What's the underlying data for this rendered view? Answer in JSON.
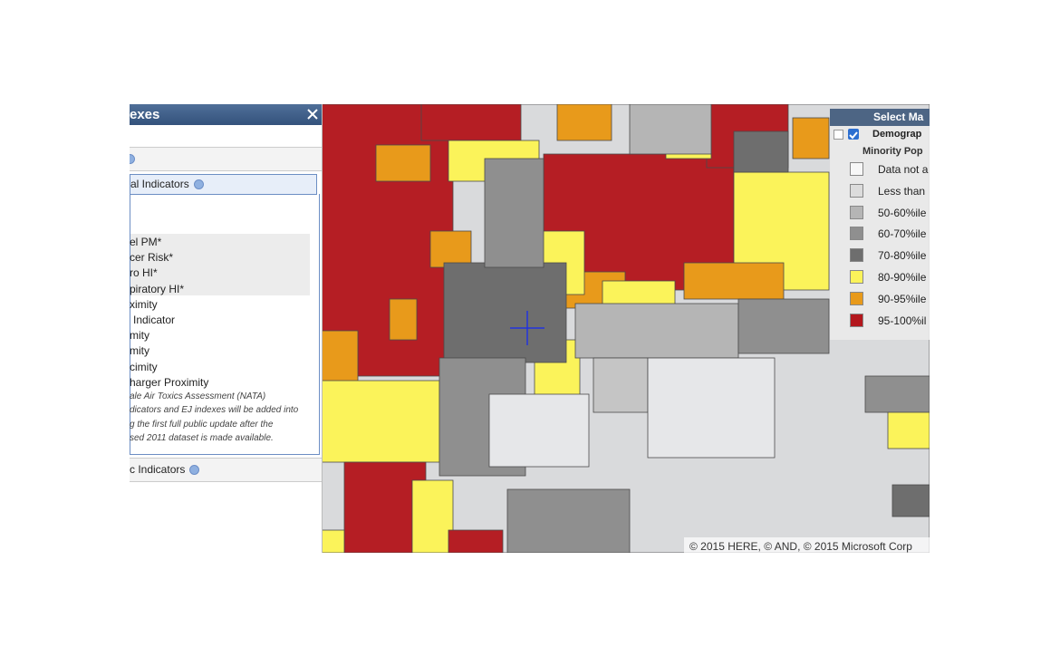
{
  "panel": {
    "title": "exes",
    "section_header": "al Indicators",
    "items": [
      "el PM*",
      "cer Risk*",
      "ro HI*",
      "piratory HI*",
      "ximity",
      "Indicator",
      "mity",
      "mity",
      "cimity",
      "harger Proximity"
    ],
    "note": [
      "ale Air Toxics Assessment (NATA)",
      "dicators and EJ indexes will be added into",
      "g the first full public update after the",
      "sed 2011 dataset is made available."
    ],
    "footer_section": "c Indicators"
  },
  "legend": {
    "title": "Select Ma",
    "layer": "Demograp",
    "sublayer": "Minority Pop",
    "items": [
      {
        "label": "Data not a",
        "color": "#f7f7f7"
      },
      {
        "label": "Less than",
        "color": "#dcdcdc"
      },
      {
        "label": "50-60%ile",
        "color": "#b5b5b5"
      },
      {
        "label": "60-70%ile",
        "color": "#8f8f8f"
      },
      {
        "label": "70-80%ile",
        "color": "#6e6e6e"
      },
      {
        "label": "80-90%ile",
        "color": "#fbf35a"
      },
      {
        "label": "90-95%ile",
        "color": "#e89a1b"
      },
      {
        "label": "95-100%il",
        "color": "#b3171d"
      }
    ]
  },
  "map": {
    "attribution": "© 2015 HERE, © AND, © 2015 Microsoft Corp"
  }
}
